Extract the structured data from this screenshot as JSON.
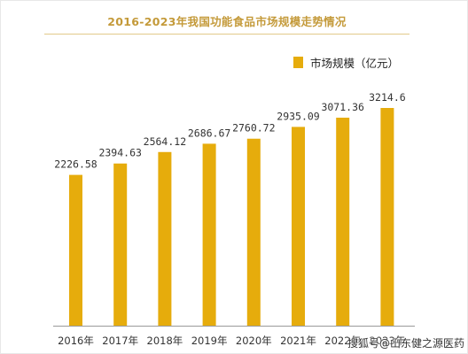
{
  "chart_data": {
    "type": "bar",
    "title": "2016-2023年我国功能食品市场规模走势情况",
    "categories": [
      "2016年",
      "2017年",
      "2018年",
      "2019年",
      "2020年",
      "2021年",
      "2022年",
      "2023年"
    ],
    "series": [
      {
        "name": "市场规模（亿元）",
        "values": [
          2226.58,
          2394.63,
          2564.12,
          2686.67,
          2760.72,
          2935.09,
          3071.36,
          3214.6
        ],
        "labels": [
          "2226.58",
          "2394.63",
          "2564.12",
          "2686.67",
          "2760.72",
          "2935.09",
          "3071.36",
          "3214.6"
        ],
        "color": "#e6ac0c"
      }
    ],
    "xlabel": "",
    "ylabel": "",
    "ylim": [
      0,
      3214.6
    ],
    "grid": false,
    "legend": "top-right"
  },
  "watermark": "搜狐号@山东健之源医药"
}
